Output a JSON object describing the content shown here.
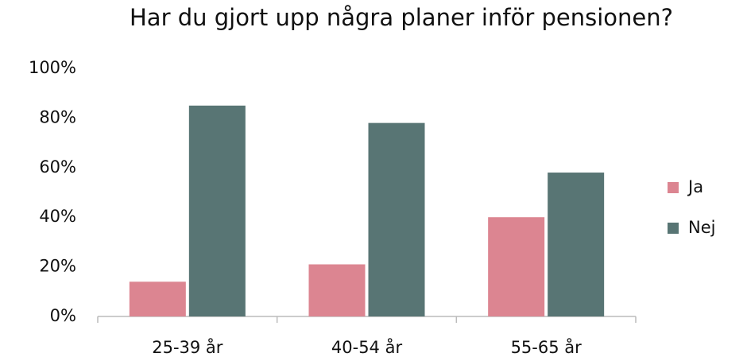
{
  "chart_data": {
    "type": "bar",
    "title": "Har du gjort upp några planer inför pensionen?",
    "categories": [
      "25-39 år",
      "40-54 år",
      "55-65 år"
    ],
    "series": [
      {
        "name": "Ja",
        "color": "#dc8591",
        "values": [
          14,
          21,
          40
        ]
      },
      {
        "name": "Nej",
        "color": "#587574",
        "values": [
          85,
          78,
          58
        ]
      }
    ],
    "ylim": [
      0,
      100
    ],
    "yticks": [
      {
        "value": 0,
        "label": "0%"
      },
      {
        "value": 20,
        "label": "20%"
      },
      {
        "value": 40,
        "label": "40%"
      },
      {
        "value": 60,
        "label": "60%"
      },
      {
        "value": 80,
        "label": "80%"
      },
      {
        "value": 100,
        "label": "100%"
      }
    ],
    "grid": false,
    "legend": "right"
  }
}
